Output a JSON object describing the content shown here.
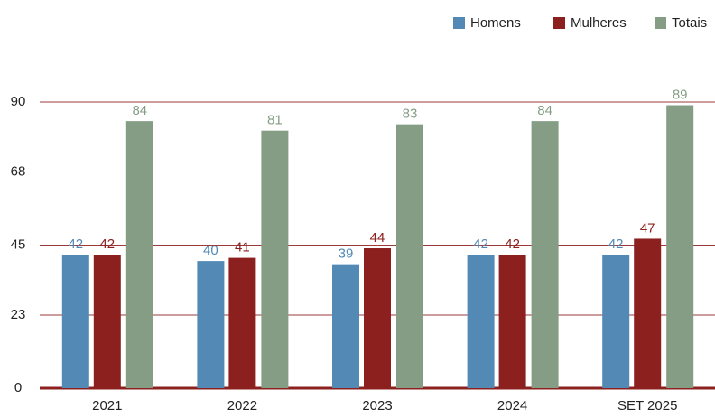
{
  "chart_data": {
    "type": "bar",
    "categories": [
      "2021",
      "2022",
      "2023",
      "2024",
      "SET 2025"
    ],
    "series": [
      {
        "name": "Homens",
        "color": "#5289b5",
        "values": [
          42,
          40,
          39,
          42,
          42
        ]
      },
      {
        "name": "Mulheres",
        "color": "#8b201e",
        "values": [
          42,
          41,
          44,
          42,
          47
        ]
      },
      {
        "name": "Totais",
        "color": "#859d85",
        "values": [
          84,
          81,
          83,
          84,
          89
        ]
      }
    ],
    "ylim": [
      0,
      90
    ],
    "yticks": [
      0,
      23,
      45,
      68,
      90
    ],
    "grid": true,
    "legend": "top-right"
  }
}
